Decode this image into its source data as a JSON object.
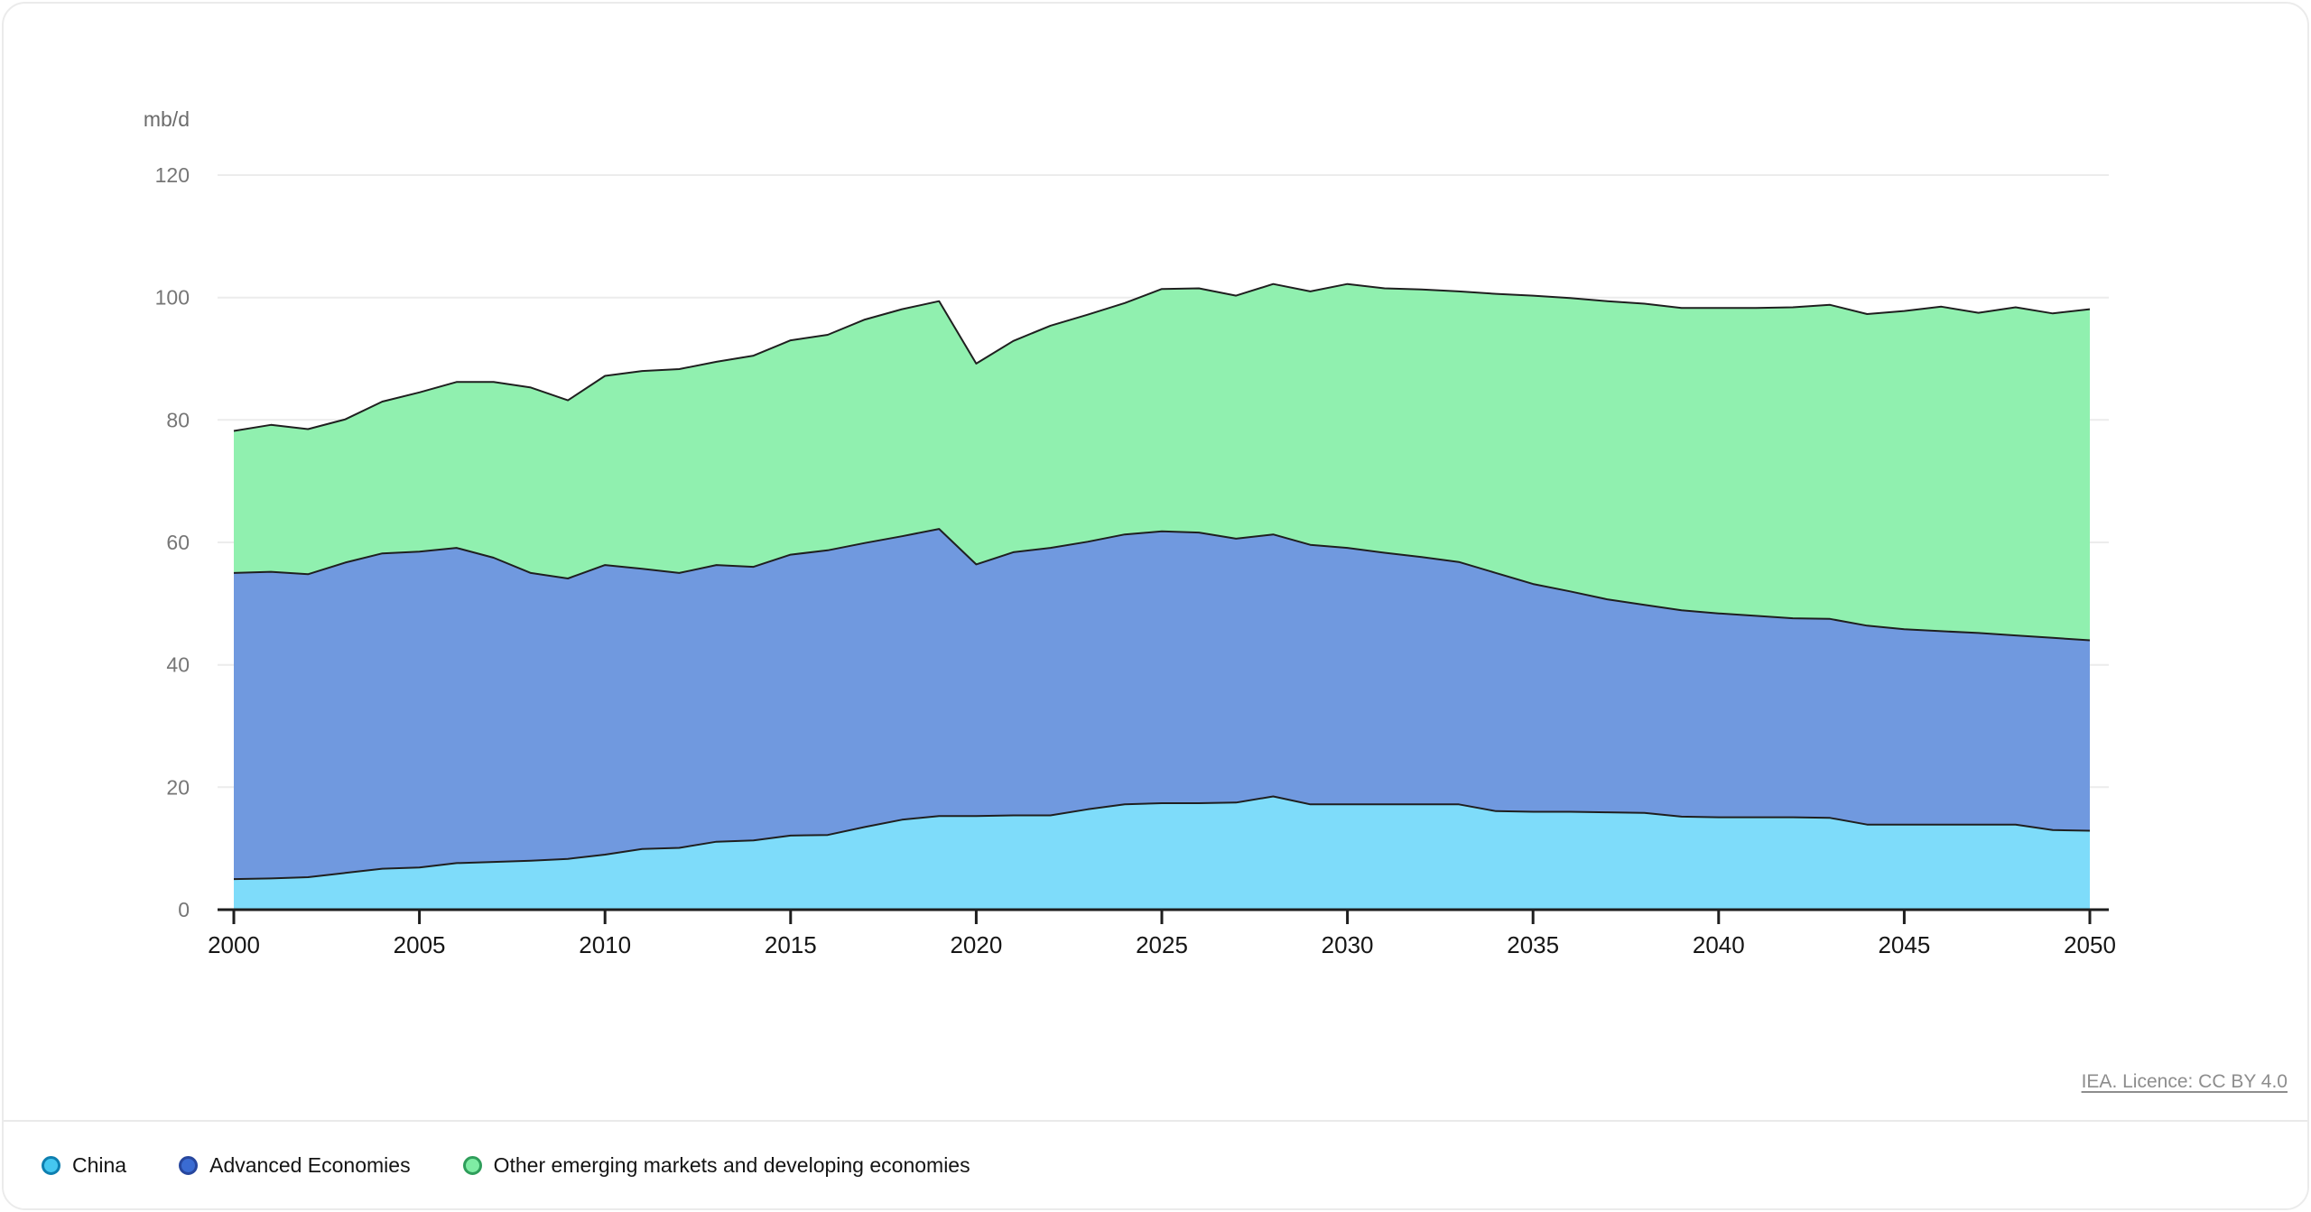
{
  "unit_label": "mb/d",
  "attribution": "IEA. Licence: CC BY 4.0",
  "colors": {
    "grid": "#ececec",
    "axis": "#1e1e1e",
    "boundary_line": "#1f1f1f",
    "x_label": "#161616",
    "y_label": "#767676"
  },
  "legend": {
    "items": [
      {
        "label": "China",
        "dot_fill": "#45C7F0",
        "dot_ring": "#0E7FB0"
      },
      {
        "label": "Advanced Economies",
        "dot_fill": "#3A6BD2",
        "dot_ring": "#27479E"
      },
      {
        "label": "Other emerging markets and developing economies",
        "dot_fill": "#7FECA4",
        "dot_ring": "#2F9E5B"
      }
    ]
  },
  "chart_data": {
    "type": "area",
    "stacked": true,
    "title": "",
    "ylabel": "mb/d",
    "xlabel": "",
    "grid": true,
    "legend_position": "bottom",
    "ylim": [
      0,
      120
    ],
    "y_ticks": [
      0,
      20,
      40,
      60,
      80,
      100,
      120
    ],
    "x_ticks": [
      2000,
      2005,
      2010,
      2015,
      2020,
      2025,
      2030,
      2035,
      2040,
      2045,
      2050
    ],
    "x": [
      2000,
      2001,
      2002,
      2003,
      2004,
      2005,
      2006,
      2007,
      2008,
      2009,
      2010,
      2011,
      2012,
      2013,
      2014,
      2015,
      2016,
      2017,
      2018,
      2019,
      2020,
      2021,
      2022,
      2023,
      2024,
      2025,
      2026,
      2027,
      2028,
      2029,
      2030,
      2031,
      2032,
      2033,
      2034,
      2035,
      2036,
      2037,
      2038,
      2039,
      2040,
      2041,
      2042,
      2043,
      2044,
      2045,
      2046,
      2047,
      2048,
      2049,
      2050
    ],
    "series": [
      {
        "name": "China",
        "color": "#7EDCFA",
        "values": [
          5.0,
          5.1,
          5.3,
          6.0,
          6.7,
          6.9,
          7.6,
          7.8,
          8.0,
          8.3,
          9.0,
          9.9,
          10.1,
          11.1,
          11.3,
          12.1,
          12.2,
          13.5,
          14.7,
          15.3,
          15.3,
          15.4,
          15.4,
          16.4,
          17.2,
          17.4,
          17.4,
          17.5,
          18.5,
          17.2,
          17.2,
          17.2,
          17.2,
          17.2,
          16.1,
          16.0,
          16.0,
          15.9,
          15.8,
          15.2,
          15.1,
          15.1,
          15.1,
          15.0,
          13.9,
          13.9,
          13.9,
          13.9,
          13.9,
          13.0,
          12.9
        ]
      },
      {
        "name": "Advanced Economies",
        "color": "#7099DF",
        "values": [
          50.0,
          50.1,
          49.5,
          50.7,
          51.5,
          51.6,
          51.5,
          49.7,
          47.0,
          45.8,
          47.3,
          45.8,
          44.9,
          45.2,
          44.7,
          45.9,
          46.5,
          46.4,
          46.3,
          46.9,
          41.1,
          43.0,
          43.7,
          43.7,
          44.1,
          44.4,
          44.2,
          43.1,
          42.8,
          42.4,
          41.9,
          41.1,
          40.4,
          39.6,
          38.9,
          37.2,
          36.0,
          34.8,
          34.0,
          33.7,
          33.3,
          32.9,
          32.5,
          32.5,
          32.5,
          31.9,
          31.6,
          31.3,
          30.9,
          31.4,
          31.1
        ]
      },
      {
        "name": "Other emerging markets and developing economies",
        "color": "#90F0AF",
        "values": [
          23.2,
          24.0,
          23.7,
          23.4,
          24.8,
          26.0,
          27.1,
          28.7,
          30.3,
          29.1,
          30.9,
          32.3,
          33.3,
          33.2,
          34.5,
          35.0,
          35.2,
          36.5,
          37.1,
          37.2,
          32.8,
          34.5,
          36.3,
          37.1,
          37.8,
          39.6,
          39.9,
          39.7,
          40.9,
          41.4,
          43.1,
          43.2,
          43.7,
          44.2,
          45.6,
          47.1,
          47.9,
          48.7,
          49.2,
          49.4,
          49.9,
          50.3,
          50.8,
          51.3,
          50.9,
          52.0,
          53.0,
          52.3,
          53.6,
          53.0,
          54.1
        ]
      }
    ]
  }
}
